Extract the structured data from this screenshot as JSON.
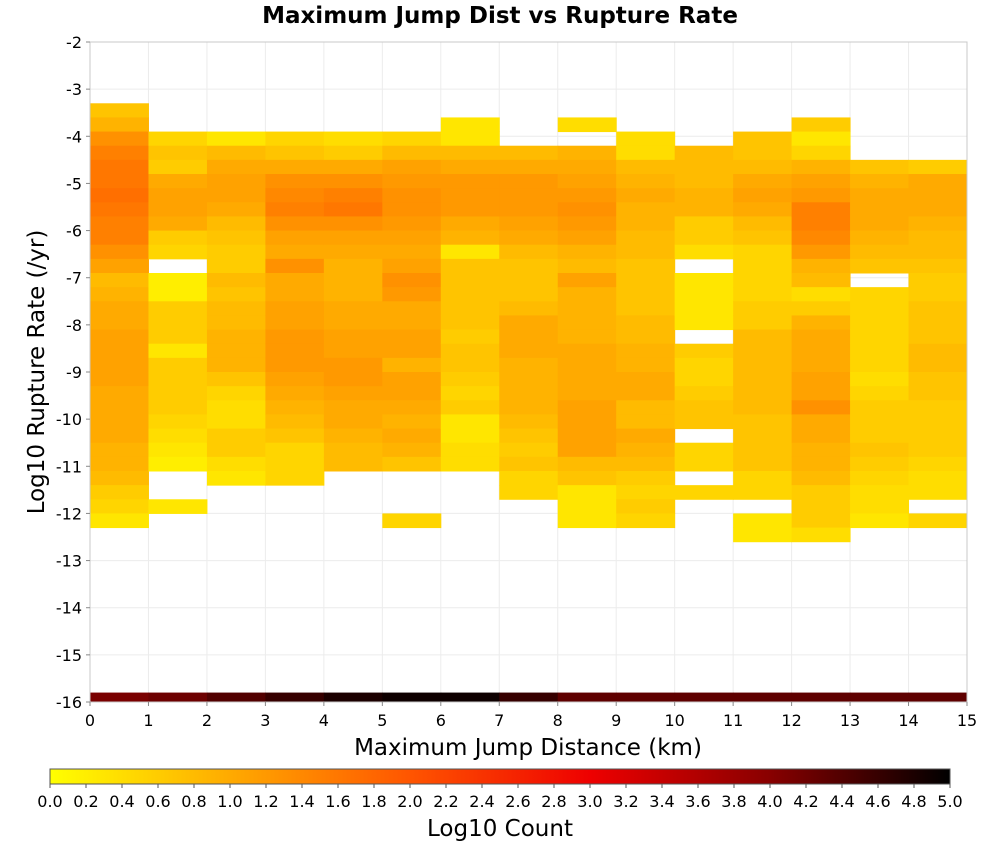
{
  "chart_data": {
    "type": "heatmap",
    "title": "Maximum Jump Dist vs Rupture Rate",
    "xlabel": "Maximum Jump Distance (km)",
    "ylabel": "Log10 Rupture Rate (/yr)",
    "xlim": [
      0,
      15
    ],
    "ylim": [
      -16,
      -2
    ],
    "x_ticks": [
      "0",
      "1",
      "2",
      "3",
      "4",
      "5",
      "6",
      "7",
      "8",
      "9",
      "10",
      "11",
      "12",
      "13",
      "14",
      "15"
    ],
    "y_ticks": [
      "-2",
      "-3",
      "-4",
      "-5",
      "-6",
      "-7",
      "-8",
      "-9",
      "-10",
      "-11",
      "-12",
      "-13",
      "-14",
      "-15",
      "-16"
    ],
    "grid": true,
    "x_bin_width": 1,
    "y_bin_height": 0.3,
    "colorbar": {
      "label": "Log10 Count",
      "range": [
        0,
        5
      ],
      "colors": [
        "#ffff00",
        "#ffaa00",
        "#ff5500",
        "#ee0000",
        "#880000",
        "#000000"
      ],
      "ticks": [
        "0.0",
        "0.2",
        "0.4",
        "0.6",
        "0.8",
        "1.0",
        "1.2",
        "1.4",
        "1.6",
        "1.8",
        "2.0",
        "2.2",
        "2.4",
        "2.6",
        "2.8",
        "3.0",
        "3.2",
        "3.4",
        "3.6",
        "3.8",
        "4.0",
        "4.2",
        "4.4",
        "4.6",
        "4.8",
        "5.0"
      ]
    },
    "columns": [
      {
        "x": 0,
        "y_top": -3.3,
        "values": [
          0.7,
          0.9,
          1.3,
          1.5,
          1.6,
          1.6,
          1.7,
          1.6,
          1.5,
          1.5,
          1.3,
          1.1,
          0.8,
          0.9,
          1.0,
          1.0,
          1.1,
          1.1,
          1.1,
          1.1,
          1.0,
          1.0,
          1.0,
          1.0,
          0.9,
          0.9,
          0.8,
          0.6,
          0.5,
          0.3
        ],
        "bottom_bar": 4.1
      },
      {
        "x": 1,
        "y_top": -3.9,
        "values": [
          0.5,
          0.7,
          0.6,
          1.0,
          1.1,
          1.1,
          1.0,
          0.6,
          0.5,
          null,
          0.2,
          0.2,
          0.6,
          0.6,
          0.6,
          0.3,
          0.6,
          0.6,
          0.6,
          0.6,
          0.5,
          0.4,
          0.3,
          0.2,
          null,
          null,
          0.3
        ],
        "bottom_bar": 4.2
      },
      {
        "x": 2,
        "y_top": -3.9,
        "values": [
          0.3,
          0.8,
          1.0,
          1.1,
          1.1,
          1.0,
          0.8,
          0.7,
          0.6,
          0.6,
          0.8,
          0.7,
          0.8,
          0.8,
          0.9,
          0.9,
          0.9,
          0.7,
          0.5,
          0.4,
          0.4,
          0.6,
          0.6,
          0.4,
          0.3
        ],
        "bottom_bar": 4.4
      },
      {
        "x": 3,
        "y_top": -3.9,
        "values": [
          0.5,
          0.7,
          1.0,
          1.3,
          1.4,
          1.5,
          1.3,
          1.1,
          1.0,
          1.3,
          1.0,
          1.0,
          1.1,
          1.1,
          1.2,
          1.2,
          1.2,
          1.1,
          1.0,
          0.9,
          0.8,
          0.7,
          0.5,
          0.5,
          0.5
        ],
        "bottom_bar": 4.6
      },
      {
        "x": 4,
        "y_top": -3.9,
        "values": [
          0.4,
          0.6,
          1.0,
          1.3,
          1.5,
          1.6,
          1.3,
          1.1,
          1.0,
          0.9,
          0.9,
          0.9,
          1.0,
          1.0,
          1.1,
          1.1,
          1.2,
          1.2,
          1.1,
          1.0,
          1.0,
          0.9,
          0.8,
          0.8
        ],
        "bottom_bar": 4.8
      },
      {
        "x": 5,
        "y_top": -3.9,
        "values": [
          0.5,
          0.8,
          1.1,
          1.2,
          1.3,
          1.3,
          1.2,
          1.1,
          1.0,
          1.1,
          1.3,
          1.2,
          1.0,
          1.0,
          1.1,
          1.1,
          0.9,
          1.1,
          1.1,
          1.0,
          0.9,
          1.0,
          0.9,
          0.7,
          null,
          null,
          null,
          0.5
        ],
        "bottom_bar": 4.9
      },
      {
        "x": 6,
        "y_top": -3.6,
        "values": [
          0.3,
          0.3,
          0.8,
          1.0,
          1.2,
          1.2,
          1.2,
          1.0,
          0.9,
          0.3,
          0.7,
          0.7,
          0.7,
          0.7,
          0.7,
          0.6,
          0.7,
          0.7,
          0.6,
          0.5,
          0.6,
          0.3,
          0.3,
          0.4,
          0.4
        ],
        "bottom_bar": 4.9
      },
      {
        "x": 7,
        "y_top": -4.2,
        "values": [
          0.8,
          1.0,
          1.2,
          1.2,
          1.2,
          1.1,
          1.0,
          0.8,
          0.7,
          0.7,
          0.7,
          0.8,
          1.0,
          1.0,
          1.0,
          0.9,
          0.9,
          0.9,
          0.9,
          0.8,
          0.7,
          0.6,
          0.7,
          0.5,
          0.5
        ],
        "bottom_bar": 4.6
      },
      {
        "x": 8,
        "y_top": -3.6,
        "values": [
          0.4,
          null,
          0.9,
          1.0,
          1.1,
          1.2,
          1.3,
          1.2,
          1.1,
          0.9,
          0.8,
          1.1,
          0.9,
          0.9,
          0.9,
          0.9,
          1.0,
          1.0,
          1.0,
          1.0,
          1.1,
          1.1,
          1.1,
          1.1,
          0.8,
          0.7,
          0.3,
          0.3,
          0.3
        ],
        "bottom_bar": 4.3
      },
      {
        "x": 9,
        "y_top": -3.9,
        "values": [
          0.4,
          0.4,
          0.8,
          0.9,
          1.0,
          0.9,
          0.9,
          0.8,
          0.8,
          0.7,
          0.7,
          0.7,
          0.7,
          0.8,
          0.8,
          0.9,
          0.9,
          1.0,
          1.0,
          0.8,
          0.8,
          1.0,
          0.9,
          0.8,
          0.6,
          0.5,
          0.6,
          0.5
        ],
        "bottom_bar": 4.3
      },
      {
        "x": 10,
        "y_top": -4.2,
        "values": [
          0.8,
          0.8,
          0.8,
          0.9,
          0.9,
          0.6,
          0.6,
          0.4,
          null,
          0.3,
          0.3,
          0.3,
          0.3,
          null,
          0.6,
          0.5,
          0.5,
          0.6,
          0.7,
          0.7,
          null,
          0.5,
          0.5,
          null,
          0.5
        ],
        "bottom_bar": 4.3
      },
      {
        "x": 11,
        "y_top": -3.9,
        "values": [
          0.7,
          0.7,
          0.8,
          1.0,
          1.1,
          1.0,
          0.8,
          0.7,
          0.5,
          0.5,
          0.5,
          0.5,
          0.6,
          0.6,
          0.8,
          0.8,
          0.8,
          0.8,
          0.8,
          0.8,
          0.7,
          0.7,
          0.7,
          0.7,
          0.5,
          0.5,
          null,
          0.3,
          0.3
        ],
        "bottom_bar": 4.3
      },
      {
        "x": 12,
        "y_top": -3.6,
        "values": [
          0.6,
          0.3,
          0.5,
          0.9,
          1.1,
          1.2,
          1.5,
          1.5,
          1.4,
          1.2,
          0.9,
          0.8,
          0.4,
          0.6,
          0.9,
          1.0,
          1.0,
          1.0,
          1.1,
          1.1,
          1.3,
          1.0,
          1.0,
          0.9,
          0.9,
          0.8,
          0.6,
          0.6,
          0.6,
          0.4
        ],
        "bottom_bar": 4.3
      },
      {
        "x": 13,
        "y_top": -4.5,
        "values": [
          0.7,
          0.9,
          1.0,
          1.0,
          1.0,
          0.9,
          0.8,
          0.7,
          null,
          0.5,
          0.5,
          0.5,
          0.5,
          0.5,
          0.5,
          0.4,
          0.5,
          0.6,
          0.6,
          0.6,
          0.7,
          0.6,
          0.5,
          0.4,
          0.4,
          0.3
        ],
        "bottom_bar": 4.3
      },
      {
        "x": 14,
        "y_top": -4.5,
        "values": [
          0.6,
          1.0,
          1.0,
          1.0,
          0.9,
          0.8,
          0.8,
          0.7,
          0.6,
          0.6,
          0.7,
          0.7,
          0.7,
          0.8,
          0.8,
          0.7,
          0.7,
          0.6,
          0.6,
          0.6,
          0.6,
          0.5,
          0.4,
          0.4,
          null,
          0.5
        ],
        "bottom_bar": 4.3
      }
    ]
  }
}
